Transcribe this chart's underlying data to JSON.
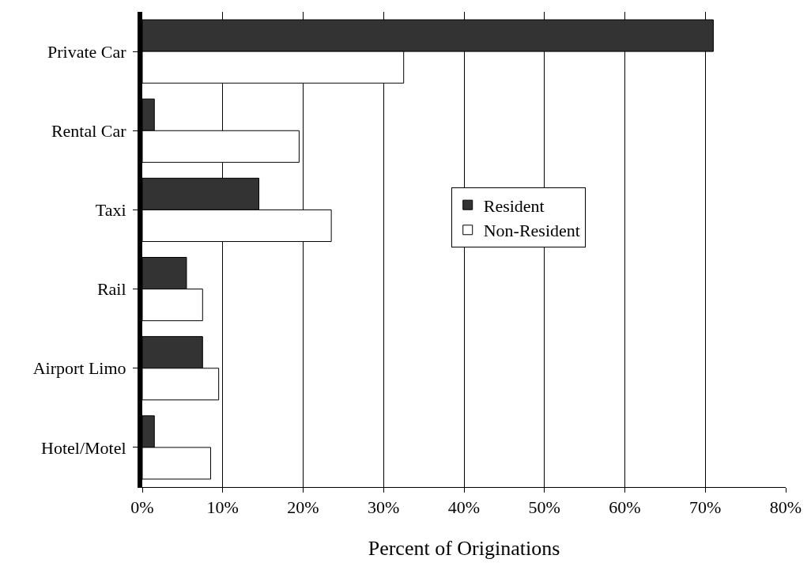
{
  "chart_data": {
    "type": "bar",
    "orientation": "horizontal",
    "xlabel": "Percent of Originations",
    "categories": [
      "Private Car",
      "Rental Car",
      "Taxi",
      "Rail",
      "Airport Limo",
      "Hotel/Motel"
    ],
    "series": [
      {
        "name": "Resident",
        "color": "#333333",
        "values": [
          71,
          1.5,
          14.5,
          5.5,
          7.5,
          1.5
        ]
      },
      {
        "name": "Non-Resident",
        "color": "#ffffff",
        "values": [
          32.5,
          19.5,
          23.5,
          7.5,
          9.5,
          8.5
        ]
      }
    ],
    "xlim": [
      0,
      80
    ],
    "xticks": [
      {
        "value": 0,
        "label": "0%"
      },
      {
        "value": 10,
        "label": "10%"
      },
      {
        "value": 20,
        "label": "20%"
      },
      {
        "value": 30,
        "label": "30%"
      },
      {
        "value": 40,
        "label": "40%"
      },
      {
        "value": 50,
        "label": "50%"
      },
      {
        "value": 60,
        "label": "60%"
      },
      {
        "value": 70,
        "label": "70%"
      },
      {
        "value": 80,
        "label": "80%"
      }
    ],
    "grid": "x",
    "legend": "right"
  }
}
